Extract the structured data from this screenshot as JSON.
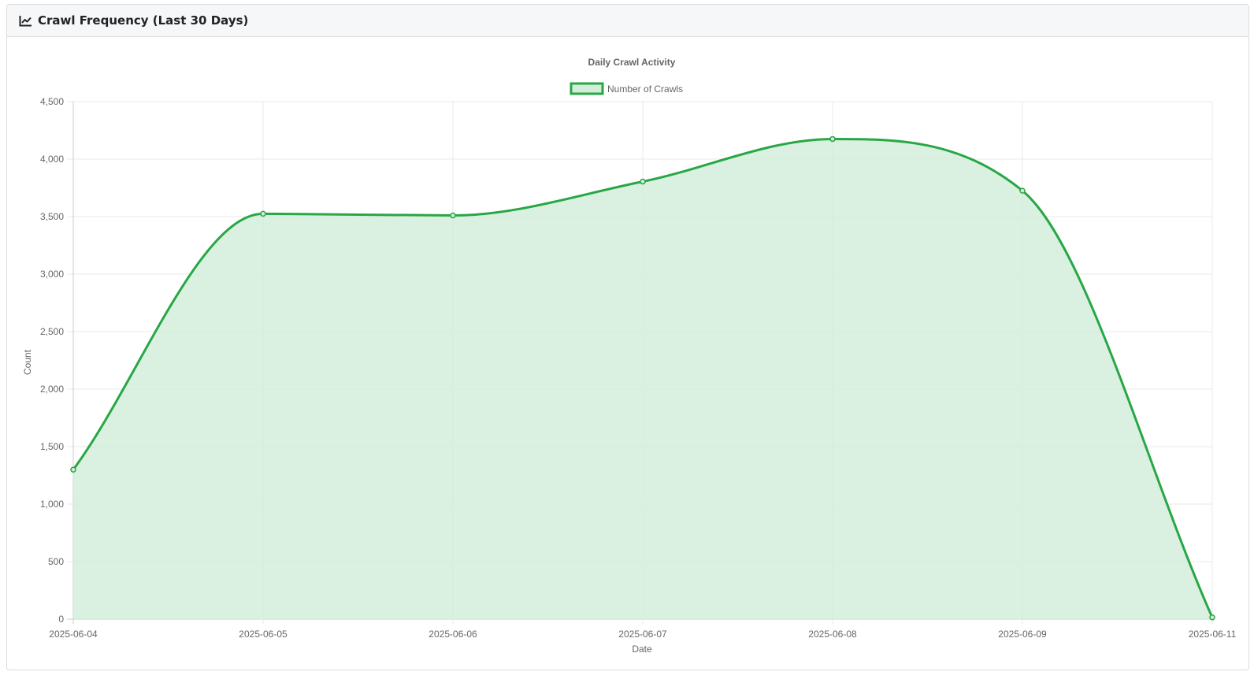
{
  "header": {
    "title": "Crawl Frequency (Last 30 Days)",
    "icon": "line-chart-icon"
  },
  "chart_data": {
    "type": "area",
    "title": "Daily Crawl Activity",
    "xlabel": "Date",
    "ylabel": "Count",
    "categories": [
      "2025-06-04",
      "2025-06-05",
      "2025-06-06",
      "2025-06-07",
      "2025-06-08",
      "2025-06-09",
      "2025-06-11"
    ],
    "series": [
      {
        "name": "Number of Crawls",
        "values": [
          1300,
          3525,
          3510,
          3805,
          4175,
          3725,
          15
        ],
        "color": "#28a745",
        "fill": "#d4eddb"
      }
    ],
    "ylim": [
      0,
      4500
    ],
    "yticks": [
      "0",
      "500",
      "1,000",
      "1,500",
      "2,000",
      "2,500",
      "3,000",
      "3,500",
      "4,000",
      "4,500"
    ],
    "grid": true,
    "legend_position": "top"
  }
}
